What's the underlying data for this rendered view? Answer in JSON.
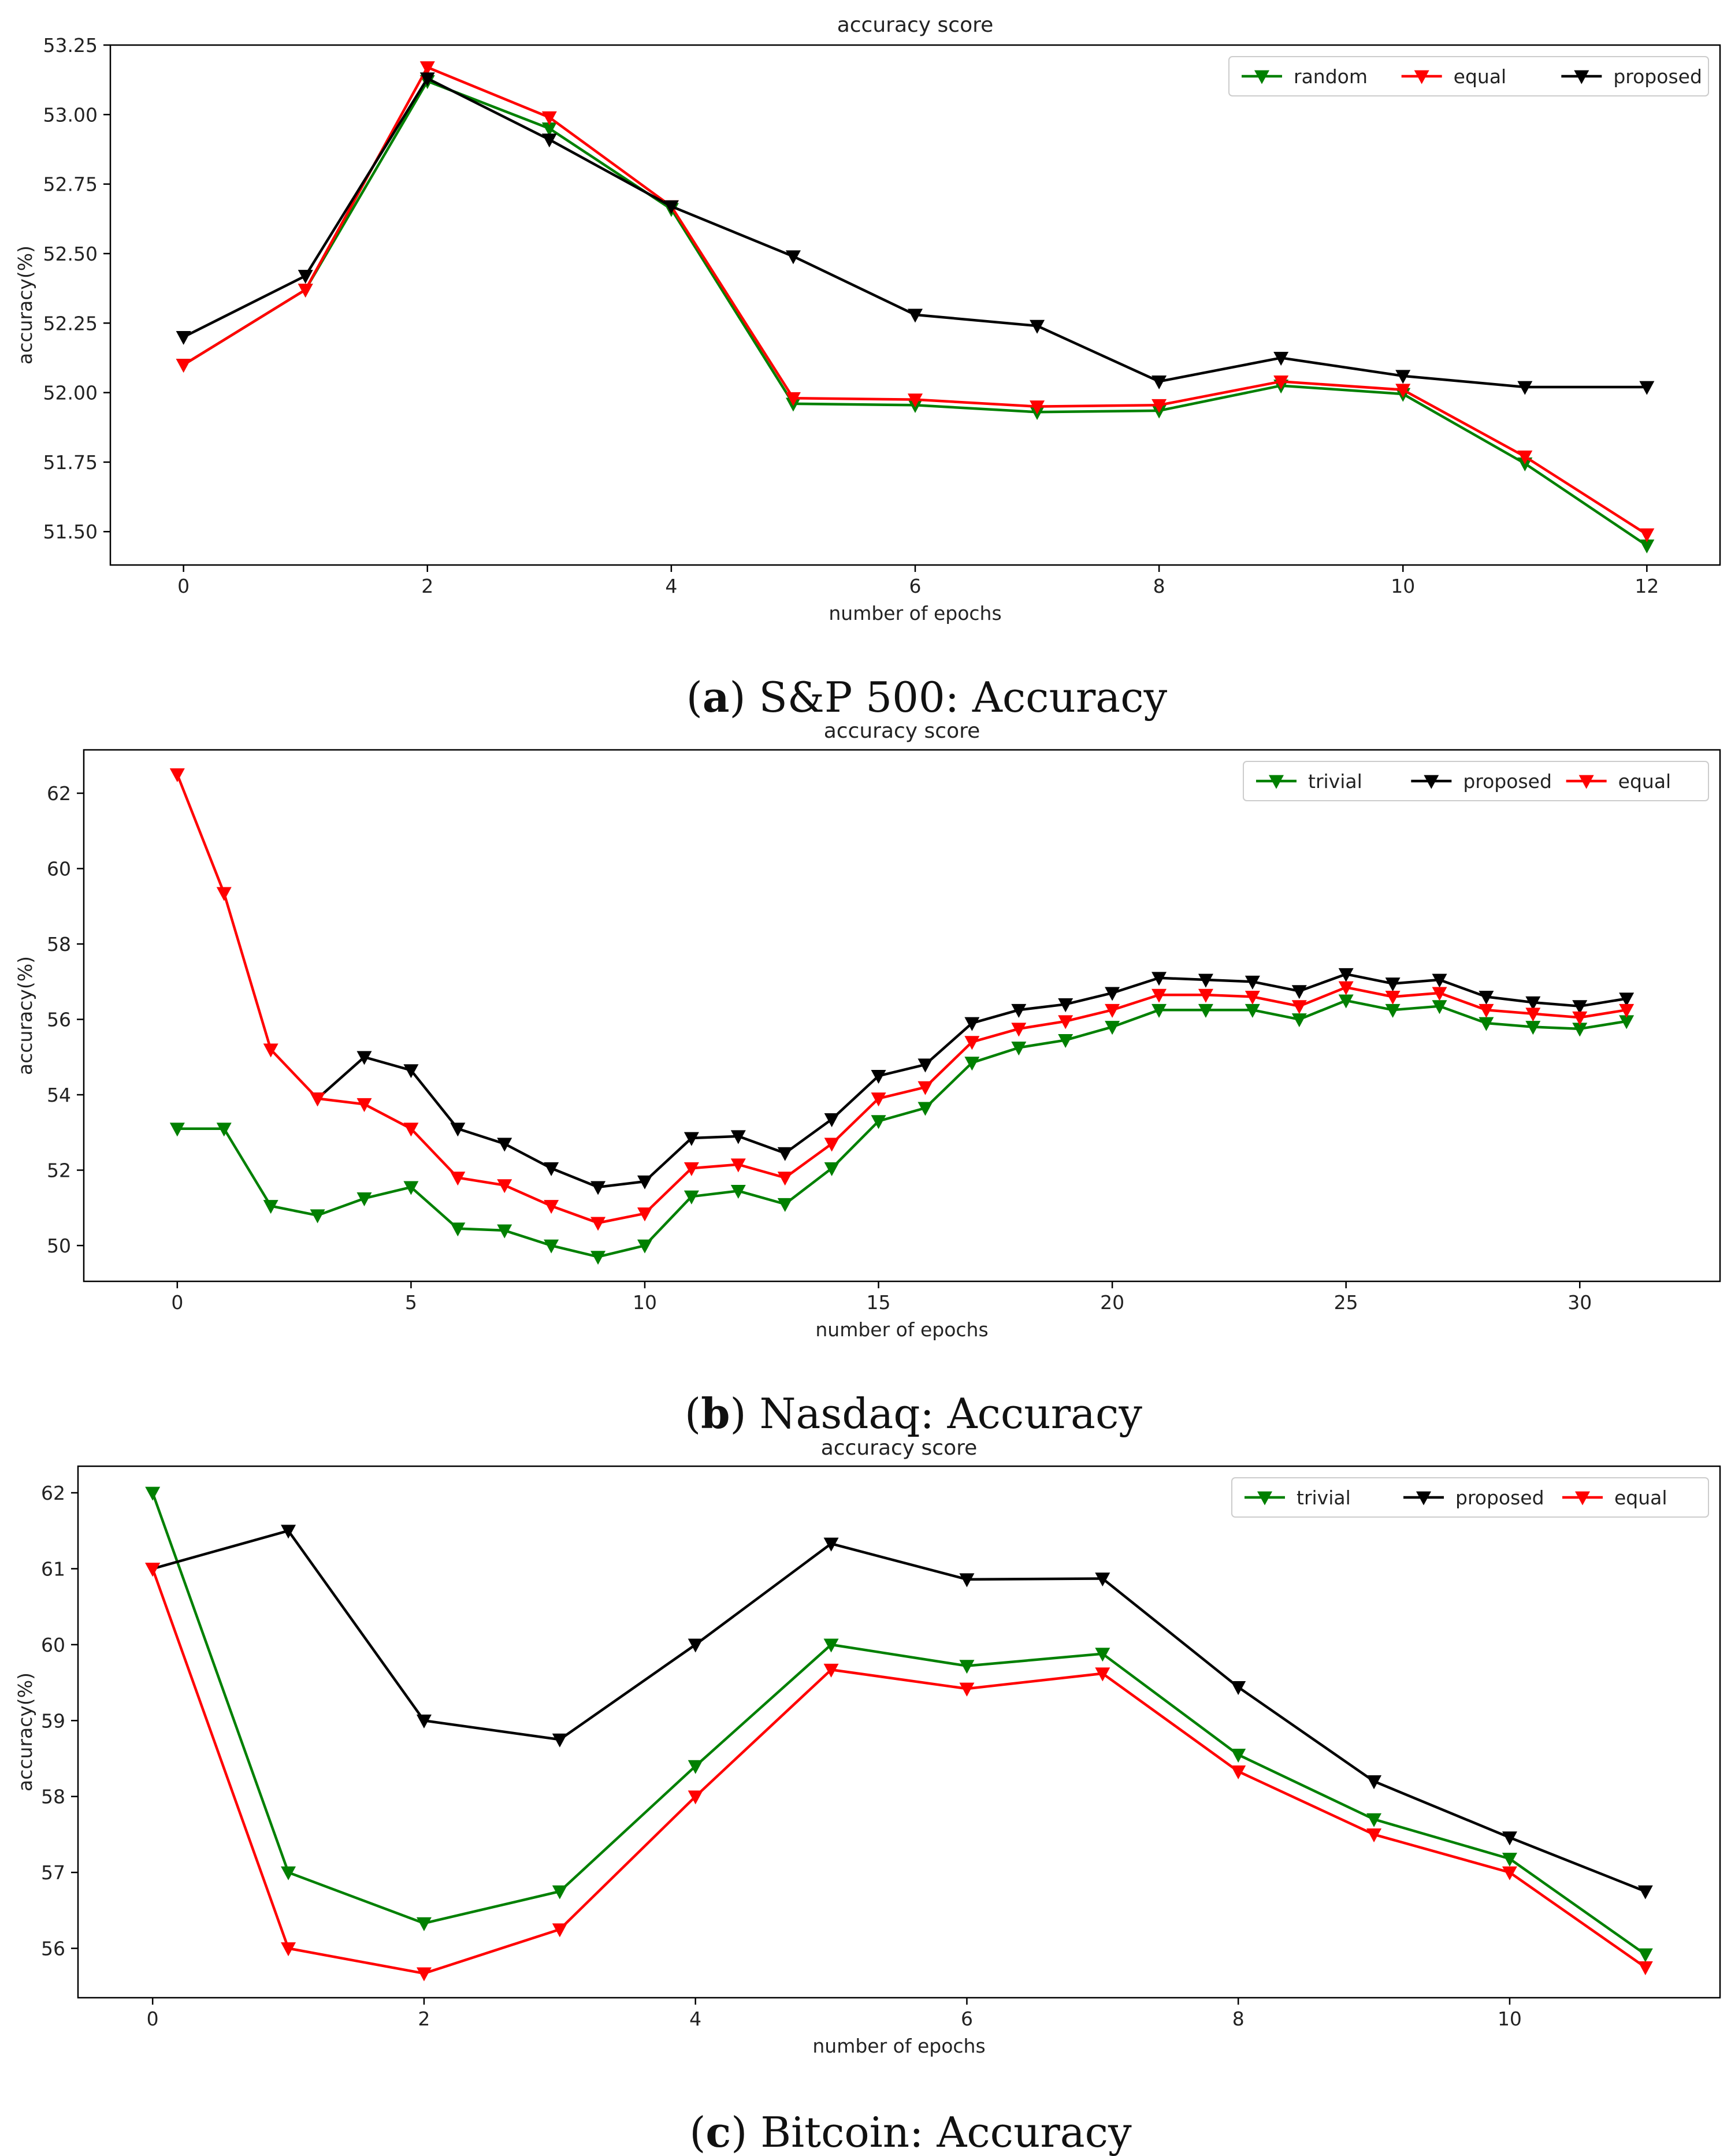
{
  "chart_data": [
    {
      "type": "line",
      "title": "accuracy score",
      "xlabel": "number of epochs",
      "ylabel": "accuracy(%)",
      "xlim": [
        -0.6,
        12.6
      ],
      "ylim": [
        51.38,
        53.25
      ],
      "xticks": [
        0,
        2,
        4,
        6,
        8,
        10,
        12
      ],
      "xtick_labels": [
        "0",
        "2",
        "4",
        "6",
        "8",
        "10",
        "12"
      ],
      "yticks": [
        51.5,
        51.75,
        52.0,
        52.25,
        52.5,
        52.75,
        53.0,
        53.25
      ],
      "ytick_labels": [
        "51.50",
        "51.75",
        "52.00",
        "52.25",
        "52.50",
        "52.75",
        "53.00",
        "53.25"
      ],
      "legend_position": "top-right",
      "caption_prefix": "a",
      "caption_text": "S&P 500: Accuracy",
      "series": [
        {
          "name": "random",
          "color": "#008000",
          "x": [
            0,
            1,
            2,
            3,
            4,
            5,
            6,
            7,
            8,
            9,
            10,
            11,
            12
          ],
          "values": [
            52.1,
            52.37,
            53.12,
            52.95,
            52.66,
            51.96,
            51.955,
            51.93,
            51.935,
            52.025,
            51.995,
            51.745,
            51.45
          ]
        },
        {
          "name": "equal",
          "color": "#ff0000",
          "x": [
            0,
            1,
            2,
            3,
            4,
            5,
            6,
            7,
            8,
            9,
            10,
            11,
            12
          ],
          "values": [
            52.1,
            52.37,
            53.17,
            52.99,
            52.67,
            51.98,
            51.975,
            51.95,
            51.955,
            52.04,
            52.01,
            51.77,
            51.49
          ]
        },
        {
          "name": "proposed",
          "color": "#000000",
          "x": [
            0,
            1,
            2,
            3,
            4,
            5,
            6,
            7,
            8,
            9,
            10,
            11,
            12
          ],
          "values": [
            52.2,
            52.42,
            53.13,
            52.91,
            52.67,
            52.49,
            52.28,
            52.24,
            52.04,
            52.125,
            52.06,
            52.02,
            52.02
          ]
        }
      ]
    },
    {
      "type": "line",
      "title": "accuracy score",
      "xlabel": "number of epochs",
      "ylabel": "accuracy(%)",
      "xlim": [
        -2.0,
        33.0
      ],
      "ylim": [
        49.05,
        63.15
      ],
      "xticks": [
        0,
        5,
        10,
        15,
        20,
        25,
        30
      ],
      "xtick_labels": [
        "0",
        "5",
        "10",
        "15",
        "20",
        "25",
        "30"
      ],
      "yticks": [
        50,
        52,
        54,
        56,
        58,
        60,
        62
      ],
      "ytick_labels": [
        "50",
        "52",
        "54",
        "56",
        "58",
        "60",
        "62"
      ],
      "legend_position": "top-right",
      "caption_prefix": "b",
      "caption_text": "Nasdaq: Accuracy",
      "series": [
        {
          "name": "trivial",
          "color": "#008000",
          "x": [
            0,
            1,
            2,
            3,
            4,
            5,
            6,
            7,
            8,
            9,
            10,
            11,
            12,
            13,
            14,
            15,
            16,
            17,
            18,
            19,
            20,
            21,
            22,
            23,
            24,
            25,
            26,
            27,
            28,
            29,
            30,
            31
          ],
          "values": [
            53.1,
            53.1,
            51.05,
            50.8,
            51.25,
            51.55,
            50.45,
            50.4,
            50.0,
            49.7,
            50.0,
            51.3,
            51.45,
            51.1,
            52.05,
            53.3,
            53.65,
            54.85,
            55.25,
            55.45,
            55.8,
            56.25,
            56.25,
            56.25,
            56.0,
            56.5,
            56.25,
            56.35,
            55.9,
            55.8,
            55.75,
            55.95
          ]
        },
        {
          "name": "proposed",
          "color": "#000000",
          "x": [
            3,
            4,
            5,
            6,
            7,
            8,
            9,
            10,
            11,
            12,
            13,
            14,
            15,
            16,
            17,
            18,
            19,
            20,
            21,
            22,
            23,
            24,
            25,
            26,
            27,
            28,
            29,
            30,
            31
          ],
          "values": [
            53.9,
            55.0,
            54.65,
            53.1,
            52.7,
            52.05,
            51.55,
            51.7,
            52.85,
            52.9,
            52.45,
            53.35,
            54.5,
            54.8,
            55.9,
            56.25,
            56.4,
            56.7,
            57.1,
            57.05,
            57.0,
            56.75,
            57.2,
            56.95,
            57.05,
            56.6,
            56.45,
            56.35,
            56.55
          ]
        },
        {
          "name": "equal",
          "color": "#ff0000",
          "x": [
            0,
            1,
            2,
            3,
            4,
            5,
            6,
            7,
            8,
            9,
            10,
            11,
            12,
            13,
            14,
            15,
            16,
            17,
            18,
            19,
            20,
            21,
            22,
            23,
            24,
            25,
            26,
            27,
            28,
            29,
            30,
            31
          ],
          "values": [
            62.5,
            59.35,
            55.2,
            53.9,
            53.75,
            53.1,
            51.8,
            51.6,
            51.05,
            50.6,
            50.85,
            52.05,
            52.15,
            51.8,
            52.7,
            53.9,
            54.2,
            55.4,
            55.75,
            55.95,
            56.25,
            56.65,
            56.65,
            56.6,
            56.35,
            56.85,
            56.6,
            56.7,
            56.25,
            56.15,
            56.05,
            56.25
          ]
        }
      ]
    },
    {
      "type": "line",
      "title": "accuracy score",
      "xlabel": "number of epochs",
      "ylabel": "accuracy(%)",
      "xlim": [
        -0.55,
        11.55
      ],
      "ylim": [
        55.35,
        62.35
      ],
      "xticks": [
        0,
        2,
        4,
        6,
        8,
        10
      ],
      "xtick_labels": [
        "0",
        "2",
        "4",
        "6",
        "8",
        "10"
      ],
      "yticks": [
        56,
        57,
        58,
        59,
        60,
        61,
        62
      ],
      "ytick_labels": [
        "56",
        "57",
        "58",
        "59",
        "60",
        "61",
        "62"
      ],
      "legend_position": "top-right",
      "caption_prefix": "c",
      "caption_text": "Bitcoin: Accuracy",
      "series": [
        {
          "name": "trivial",
          "color": "#008000",
          "x": [
            0,
            1,
            2,
            3,
            4,
            5,
            6,
            7,
            8,
            9,
            10,
            11
          ],
          "values": [
            62.0,
            57.0,
            56.33,
            56.75,
            58.4,
            60.0,
            59.72,
            59.88,
            58.55,
            57.7,
            57.18,
            55.92
          ]
        },
        {
          "name": "proposed",
          "color": "#000000",
          "x": [
            0,
            1,
            2,
            3,
            4,
            5,
            6,
            7,
            8,
            9,
            10,
            11
          ],
          "values": [
            61.0,
            61.5,
            59.0,
            58.75,
            60.0,
            61.33,
            60.86,
            60.87,
            59.44,
            58.2,
            57.46,
            56.75
          ]
        },
        {
          "name": "equal",
          "color": "#ff0000",
          "x": [
            0,
            1,
            2,
            3,
            4,
            5,
            6,
            7,
            8,
            9,
            10,
            11
          ],
          "values": [
            61.0,
            56.0,
            55.67,
            56.25,
            58.0,
            59.67,
            59.42,
            59.62,
            58.33,
            57.5,
            57.0,
            55.75
          ]
        }
      ]
    }
  ]
}
